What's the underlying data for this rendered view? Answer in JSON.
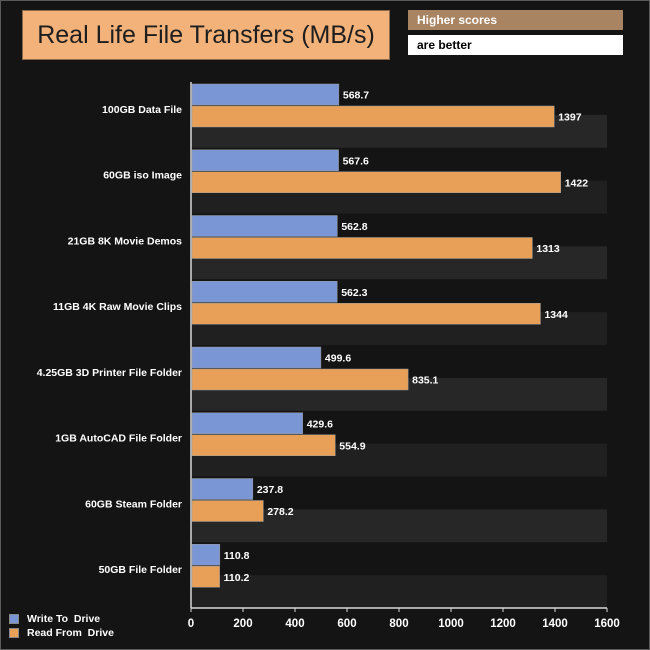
{
  "chart_data": {
    "type": "bar",
    "orientation": "horizontal",
    "title": "Real Life File Transfers (MB/s)",
    "note_line1": "Higher scores",
    "note_line2": "are better",
    "categories": [
      "100GB Data File",
      "60GB iso Image",
      "21GB 8K Movie Demos",
      "11GB 4K Raw Movie Clips",
      "4.25GB 3D Printer File Folder",
      "1GB AutoCAD File Folder",
      "60GB Steam Folder",
      "50GB File Folder"
    ],
    "series": [
      {
        "name": "Write To  Drive",
        "color": "#7a96d4",
        "values": [
          568.7,
          567.6,
          562.8,
          562.3,
          499.6,
          429.6,
          237.8,
          110.8
        ]
      },
      {
        "name": "Read From  Drive",
        "color": "#e8a058",
        "values": [
          1397,
          1422,
          1313,
          1344,
          835.1,
          554.9,
          278.2,
          110.2
        ]
      }
    ],
    "xlim": [
      0,
      1600
    ],
    "xticks": [
      "0",
      "200",
      "400",
      "600",
      "800",
      "1000",
      "1200",
      "1400",
      "1600"
    ],
    "grid": false,
    "legend_position": "bottom-left"
  }
}
